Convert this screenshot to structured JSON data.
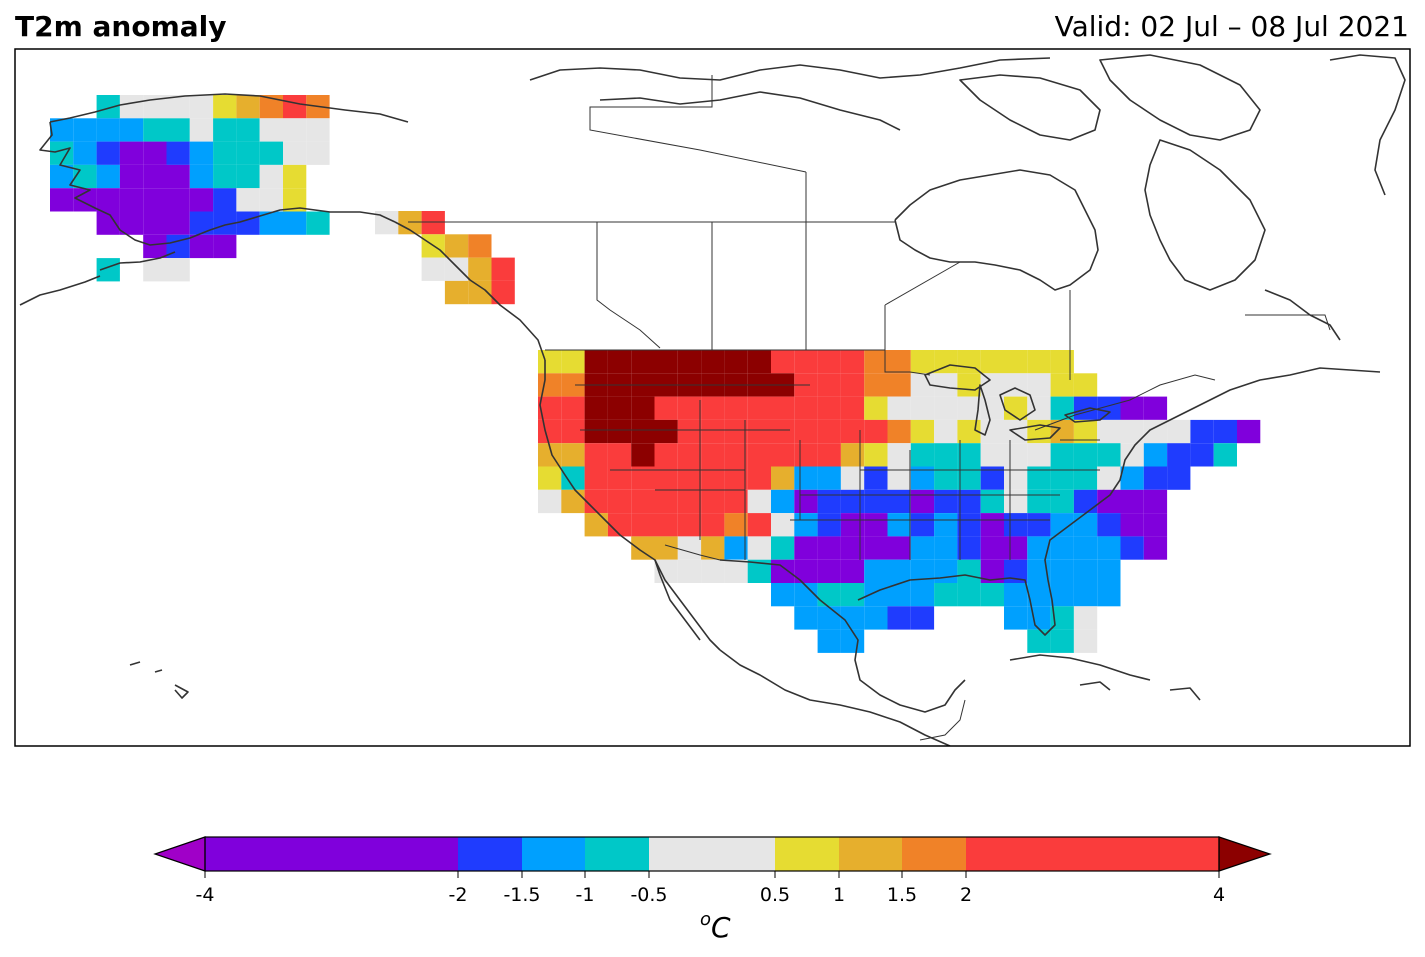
{
  "title": "T2m anomaly",
  "valid": "Valid: 02 Jul – 08 Jul 2021",
  "colorbar": {
    "unit_base": "o",
    "unit_letter": "C",
    "ticks": [
      "-4",
      "-2",
      "-1.5",
      "-1",
      "-0.5",
      "0.5",
      "1",
      "1.5",
      "2",
      "4"
    ],
    "tick_values": [
      -4,
      -2,
      -1.5,
      -1,
      -0.5,
      0.5,
      1,
      1.5,
      2,
      4
    ],
    "bins": [
      {
        "from": -4,
        "to": -2,
        "color": "#8000dc"
      },
      {
        "from": -2,
        "to": -1.5,
        "color": "#1f3cfe"
      },
      {
        "from": -1.5,
        "to": -1,
        "color": "#00a0fe"
      },
      {
        "from": -1,
        "to": -0.5,
        "color": "#00c8c8"
      },
      {
        "from": -0.5,
        "to": 0.5,
        "color": "#e6e6e6"
      },
      {
        "from": 0.5,
        "to": 1,
        "color": "#e6dc32"
      },
      {
        "from": 1,
        "to": 1.5,
        "color": "#e6af2d"
      },
      {
        "from": 1.5,
        "to": 2,
        "color": "#f08228"
      },
      {
        "from": 2,
        "to": 4,
        "color": "#fa3c3c"
      }
    ],
    "under_color": "#a000c8",
    "over_color": "#8c0000"
  }
}
